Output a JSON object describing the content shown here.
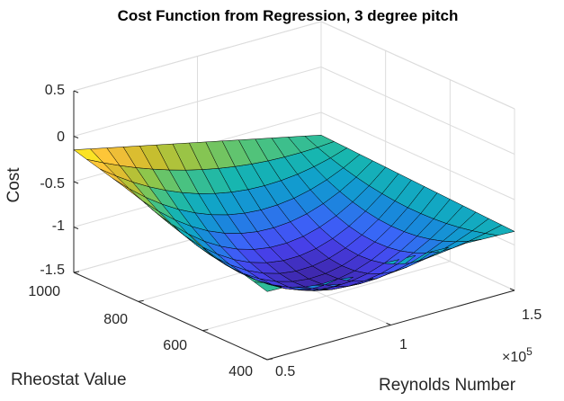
{
  "chart_data": {
    "type": "surface",
    "title": "Cost Function from Regression, 3 degree pitch",
    "xlabel": "Reynolds Number",
    "ylabel": "Rheostat Value",
    "zlabel": "Cost",
    "x_exponent_label": "×10",
    "x_exponent_power": "5",
    "x_ticks": [
      {
        "value": 0.5,
        "label": "0.5"
      },
      {
        "value": 1.0,
        "label": "1"
      },
      {
        "value": 1.5,
        "label": "1.5"
      }
    ],
    "y_ticks": [
      {
        "value": 400,
        "label": "400"
      },
      {
        "value": 600,
        "label": "600"
      },
      {
        "value": 800,
        "label": "800"
      },
      {
        "value": 1000,
        "label": "1000"
      }
    ],
    "z_ticks": [
      {
        "value": 0.5,
        "label": "0.5"
      },
      {
        "value": 0,
        "label": "0"
      },
      {
        "value": -0.5,
        "label": "-0.5"
      },
      {
        "value": -1,
        "label": "-1"
      },
      {
        "value": -1.5,
        "label": "-1.5"
      }
    ],
    "xlim": [
      0.5,
      1.5
    ],
    "ylim": [
      400,
      1000
    ],
    "zlim": [
      -1.5,
      0.5
    ],
    "x_range": [
      0.5,
      1.5
    ],
    "y_range": [
      400,
      1000
    ],
    "grid": true,
    "colormap": "parula",
    "corner_values": {
      "x_low_y_high": -0.15,
      "x_high_y_high": -0.75,
      "x_low_y_low": -0.75,
      "x_high_y_low": -0.85
    },
    "minimum_value": -1.45
  }
}
